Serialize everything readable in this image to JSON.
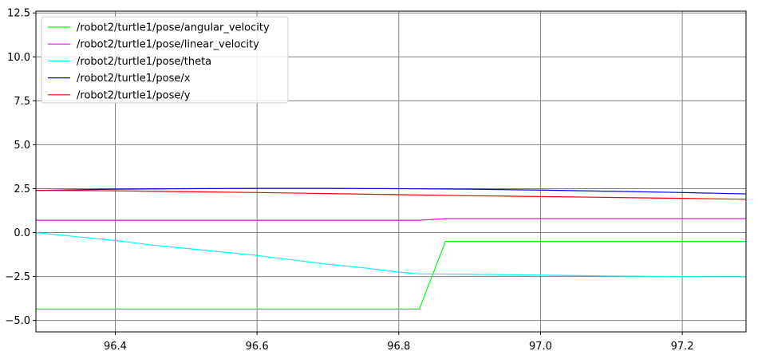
{
  "chart_data": {
    "type": "line",
    "title": "",
    "xlabel": "",
    "ylabel": "",
    "xlim": [
      96.288,
      97.29
    ],
    "ylim": [
      -5.65,
      12.6
    ],
    "grid": true,
    "legend_position": "top-left",
    "x_ticks": [
      {
        "value": 96.4,
        "label": "96.4"
      },
      {
        "value": 96.6,
        "label": "96.6"
      },
      {
        "value": 96.8,
        "label": "96.8"
      },
      {
        "value": 97.0,
        "label": "97.0"
      },
      {
        "value": 97.2,
        "label": "97.2"
      }
    ],
    "y_ticks": [
      {
        "value": -5.0,
        "label": "−5.0"
      },
      {
        "value": -2.5,
        "label": "−2.5"
      },
      {
        "value": 0.0,
        "label": "0.0"
      },
      {
        "value": 2.5,
        "label": "2.5"
      },
      {
        "value": 5.0,
        "label": "5.0"
      },
      {
        "value": 7.5,
        "label": "7.5"
      },
      {
        "value": 10.0,
        "label": "10.0"
      },
      {
        "value": 12.5,
        "label": "12.5"
      }
    ],
    "series": [
      {
        "name": "/robot2/turtle1/pose/angular_velocity",
        "color": "#00ff00",
        "x": [
          96.288,
          96.4,
          96.6,
          96.8,
          96.829,
          96.866,
          97.0,
          97.2,
          97.29
        ],
        "y": [
          -4.35,
          -4.35,
          -4.35,
          -4.35,
          -4.35,
          -0.5,
          -0.5,
          -0.5,
          -0.5
        ]
      },
      {
        "name": "/robot2/turtle1/pose/linear_velocity",
        "color": "#ff00ff",
        "x": [
          96.288,
          96.4,
          96.6,
          96.8,
          96.829,
          96.866,
          97.0,
          97.2,
          97.29
        ],
        "y": [
          0.7,
          0.7,
          0.7,
          0.7,
          0.7,
          0.8,
          0.8,
          0.8,
          0.8
        ]
      },
      {
        "name": "/robot2/turtle1/pose/theta",
        "color": "#00ffff",
        "x": [
          96.288,
          96.3,
          96.35,
          96.4,
          96.45,
          96.5,
          96.55,
          96.6,
          96.65,
          96.7,
          96.75,
          96.8,
          96.83,
          96.9,
          97.0,
          97.1,
          97.2,
          97.29
        ],
        "y": [
          0.0,
          -0.05,
          -0.25,
          -0.45,
          -0.7,
          -0.9,
          -1.1,
          -1.3,
          -1.55,
          -1.8,
          -2.0,
          -2.25,
          -2.35,
          -2.37,
          -2.42,
          -2.47,
          -2.5,
          -2.52
        ]
      },
      {
        "name": "/robot2/turtle1/pose/x",
        "color": "#0000ff",
        "x": [
          96.288,
          96.4,
          96.5,
          96.6,
          96.7,
          96.8,
          96.9,
          97.0,
          97.1,
          97.2,
          97.29
        ],
        "y": [
          2.4,
          2.47,
          2.5,
          2.52,
          2.52,
          2.5,
          2.47,
          2.42,
          2.35,
          2.28,
          2.2
        ]
      },
      {
        "name": "/robot2/turtle1/pose/y",
        "color": "#ff0000",
        "x": [
          96.288,
          96.4,
          96.5,
          96.6,
          96.7,
          96.8,
          96.9,
          97.0,
          97.1,
          97.2,
          97.29
        ],
        "y": [
          2.4,
          2.38,
          2.33,
          2.28,
          2.22,
          2.16,
          2.1,
          2.05,
          2.0,
          1.95,
          1.9
        ]
      }
    ]
  }
}
